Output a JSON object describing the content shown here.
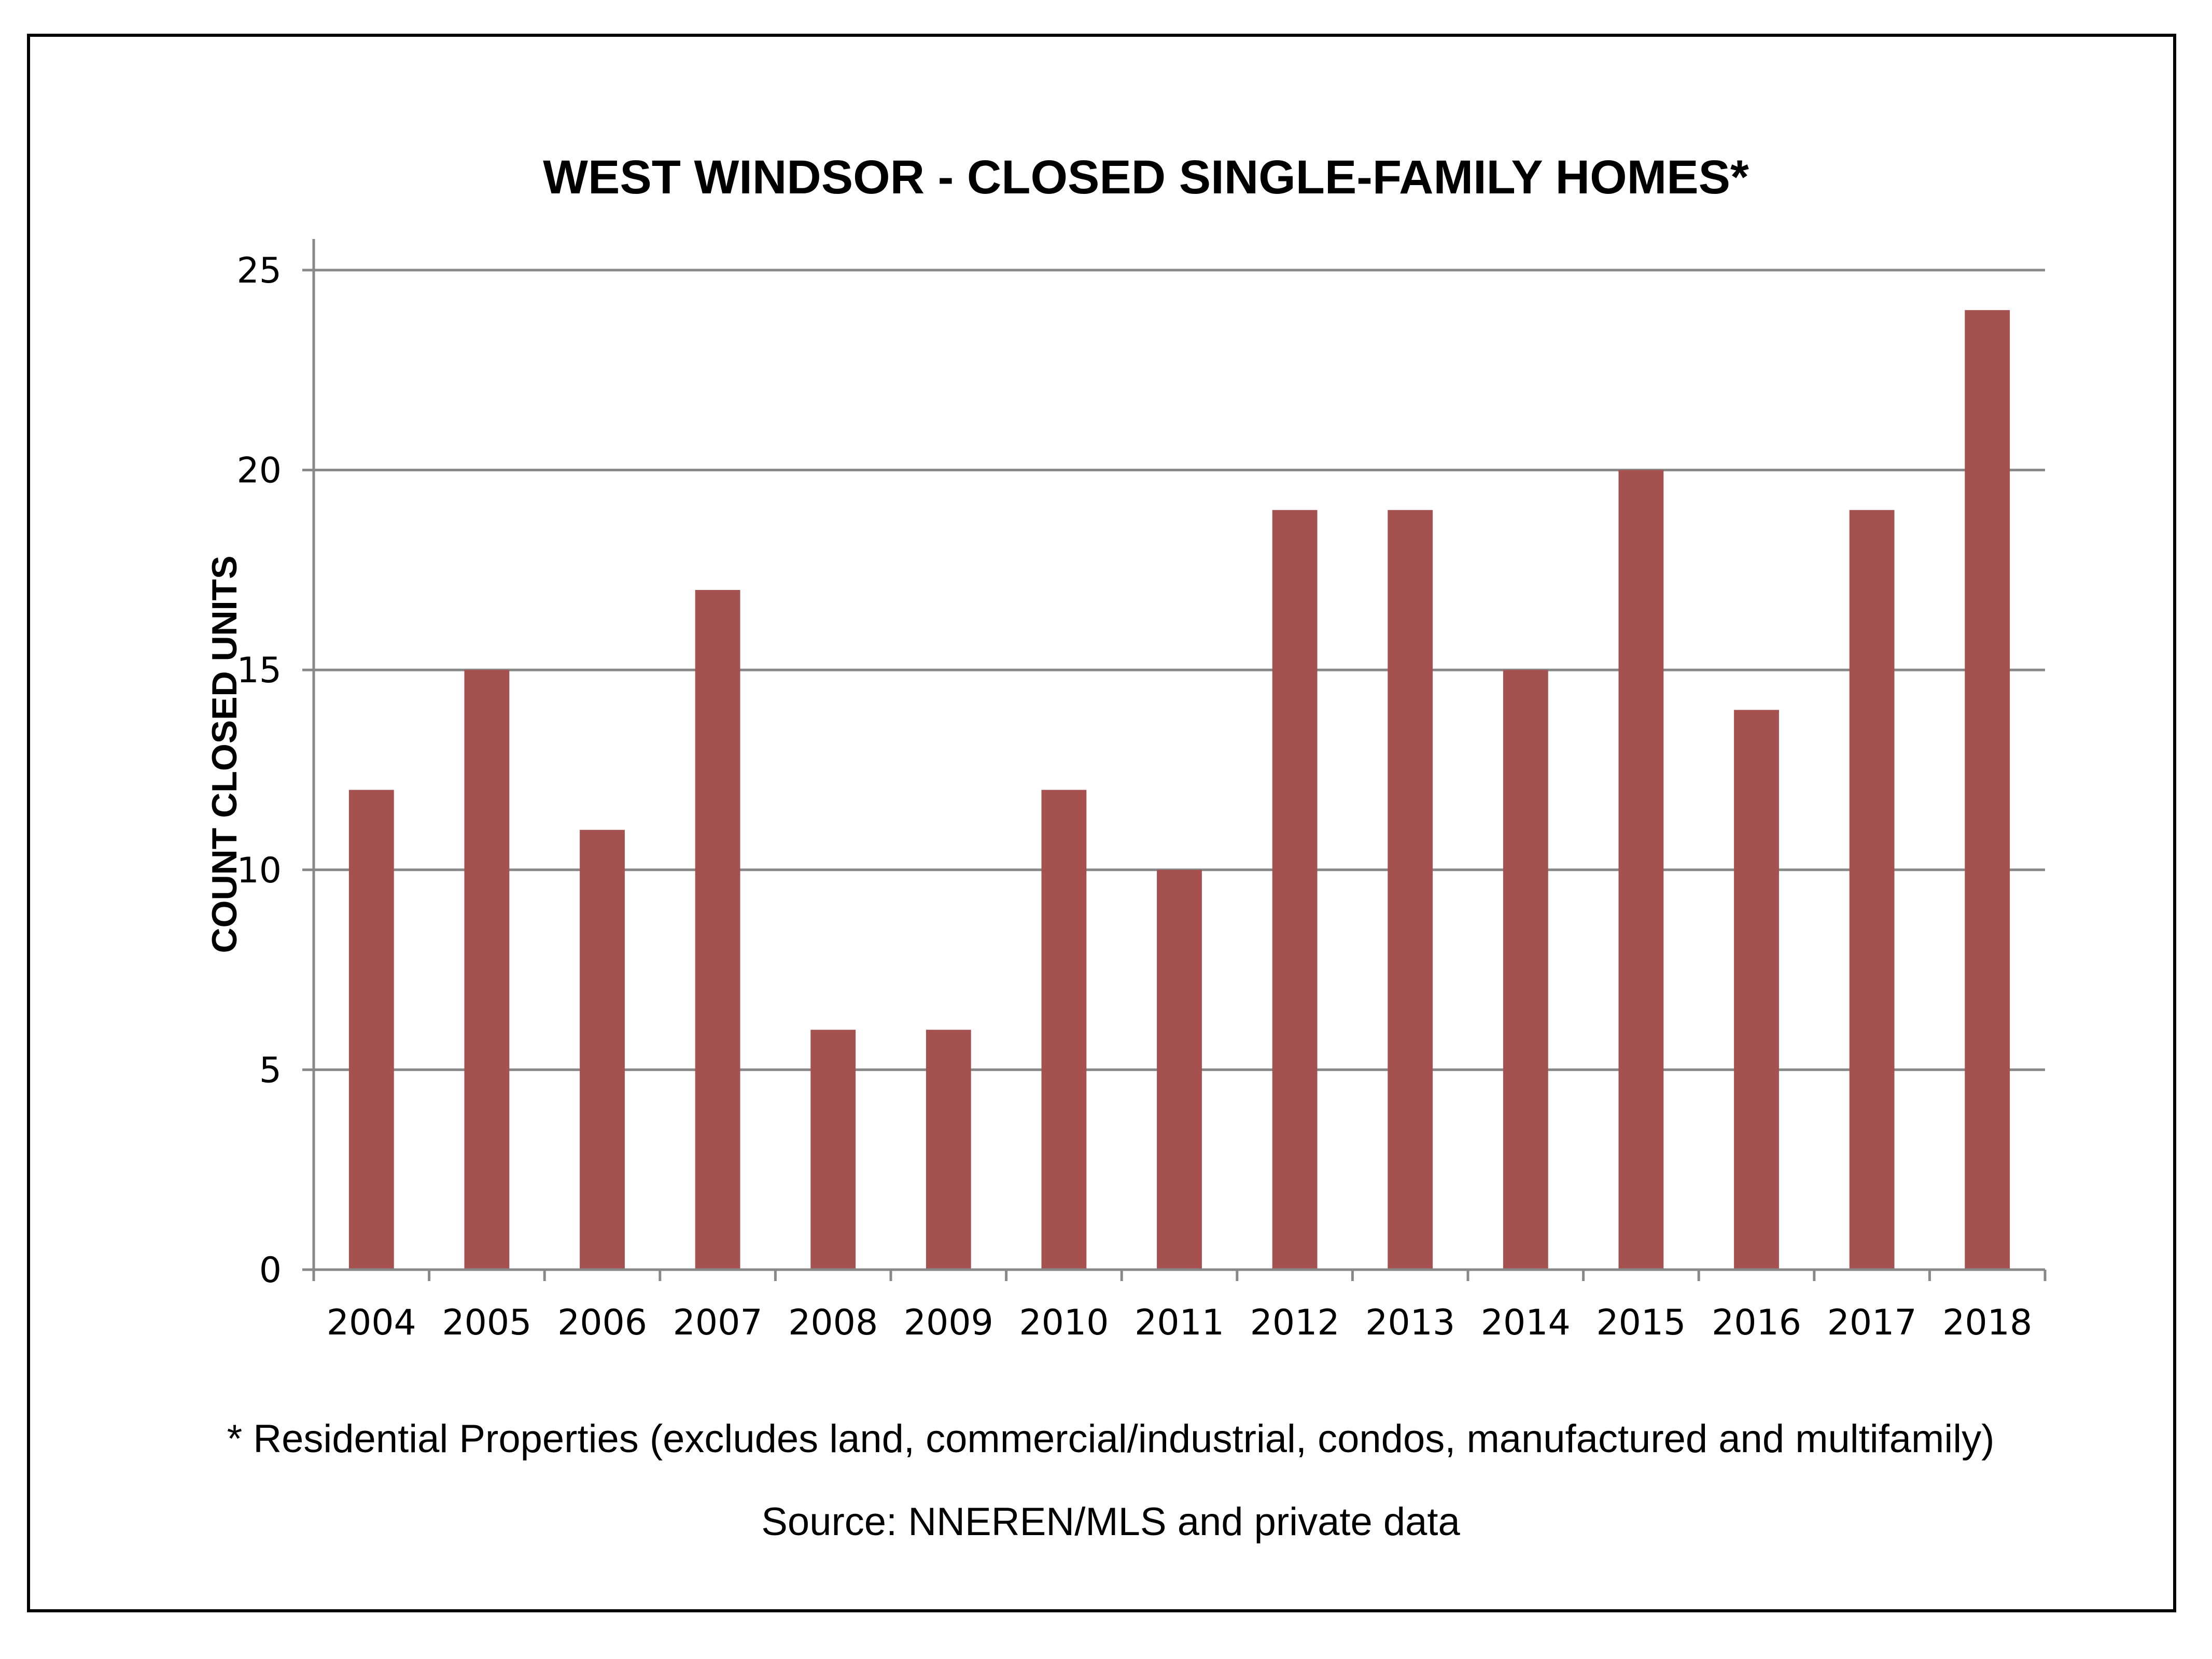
{
  "chart_data": {
    "type": "bar",
    "title": "WEST WINDSOR - CLOSED SINGLE-FAMILY HOMES*",
    "xlabel": "",
    "ylabel": "COUNT CLOSED UNITS",
    "categories": [
      "2004",
      "2005",
      "2006",
      "2007",
      "2008",
      "2009",
      "2010",
      "2011",
      "2012",
      "2013",
      "2014",
      "2015",
      "2016",
      "2017",
      "2018"
    ],
    "values": [
      12,
      15,
      11,
      17,
      6,
      6,
      12,
      10,
      19,
      19,
      15,
      20,
      14,
      19,
      24
    ],
    "ylim": [
      0,
      25
    ],
    "yticks": [
      0,
      5,
      10,
      15,
      20,
      25
    ],
    "grid": true,
    "legend": "none",
    "bar_color": "#a5514f"
  },
  "footnote": "* Residential Properties (excludes land, commercial/industrial, condos, manufactured and multifamily)",
  "source": "Source: NNEREN/MLS and private data"
}
